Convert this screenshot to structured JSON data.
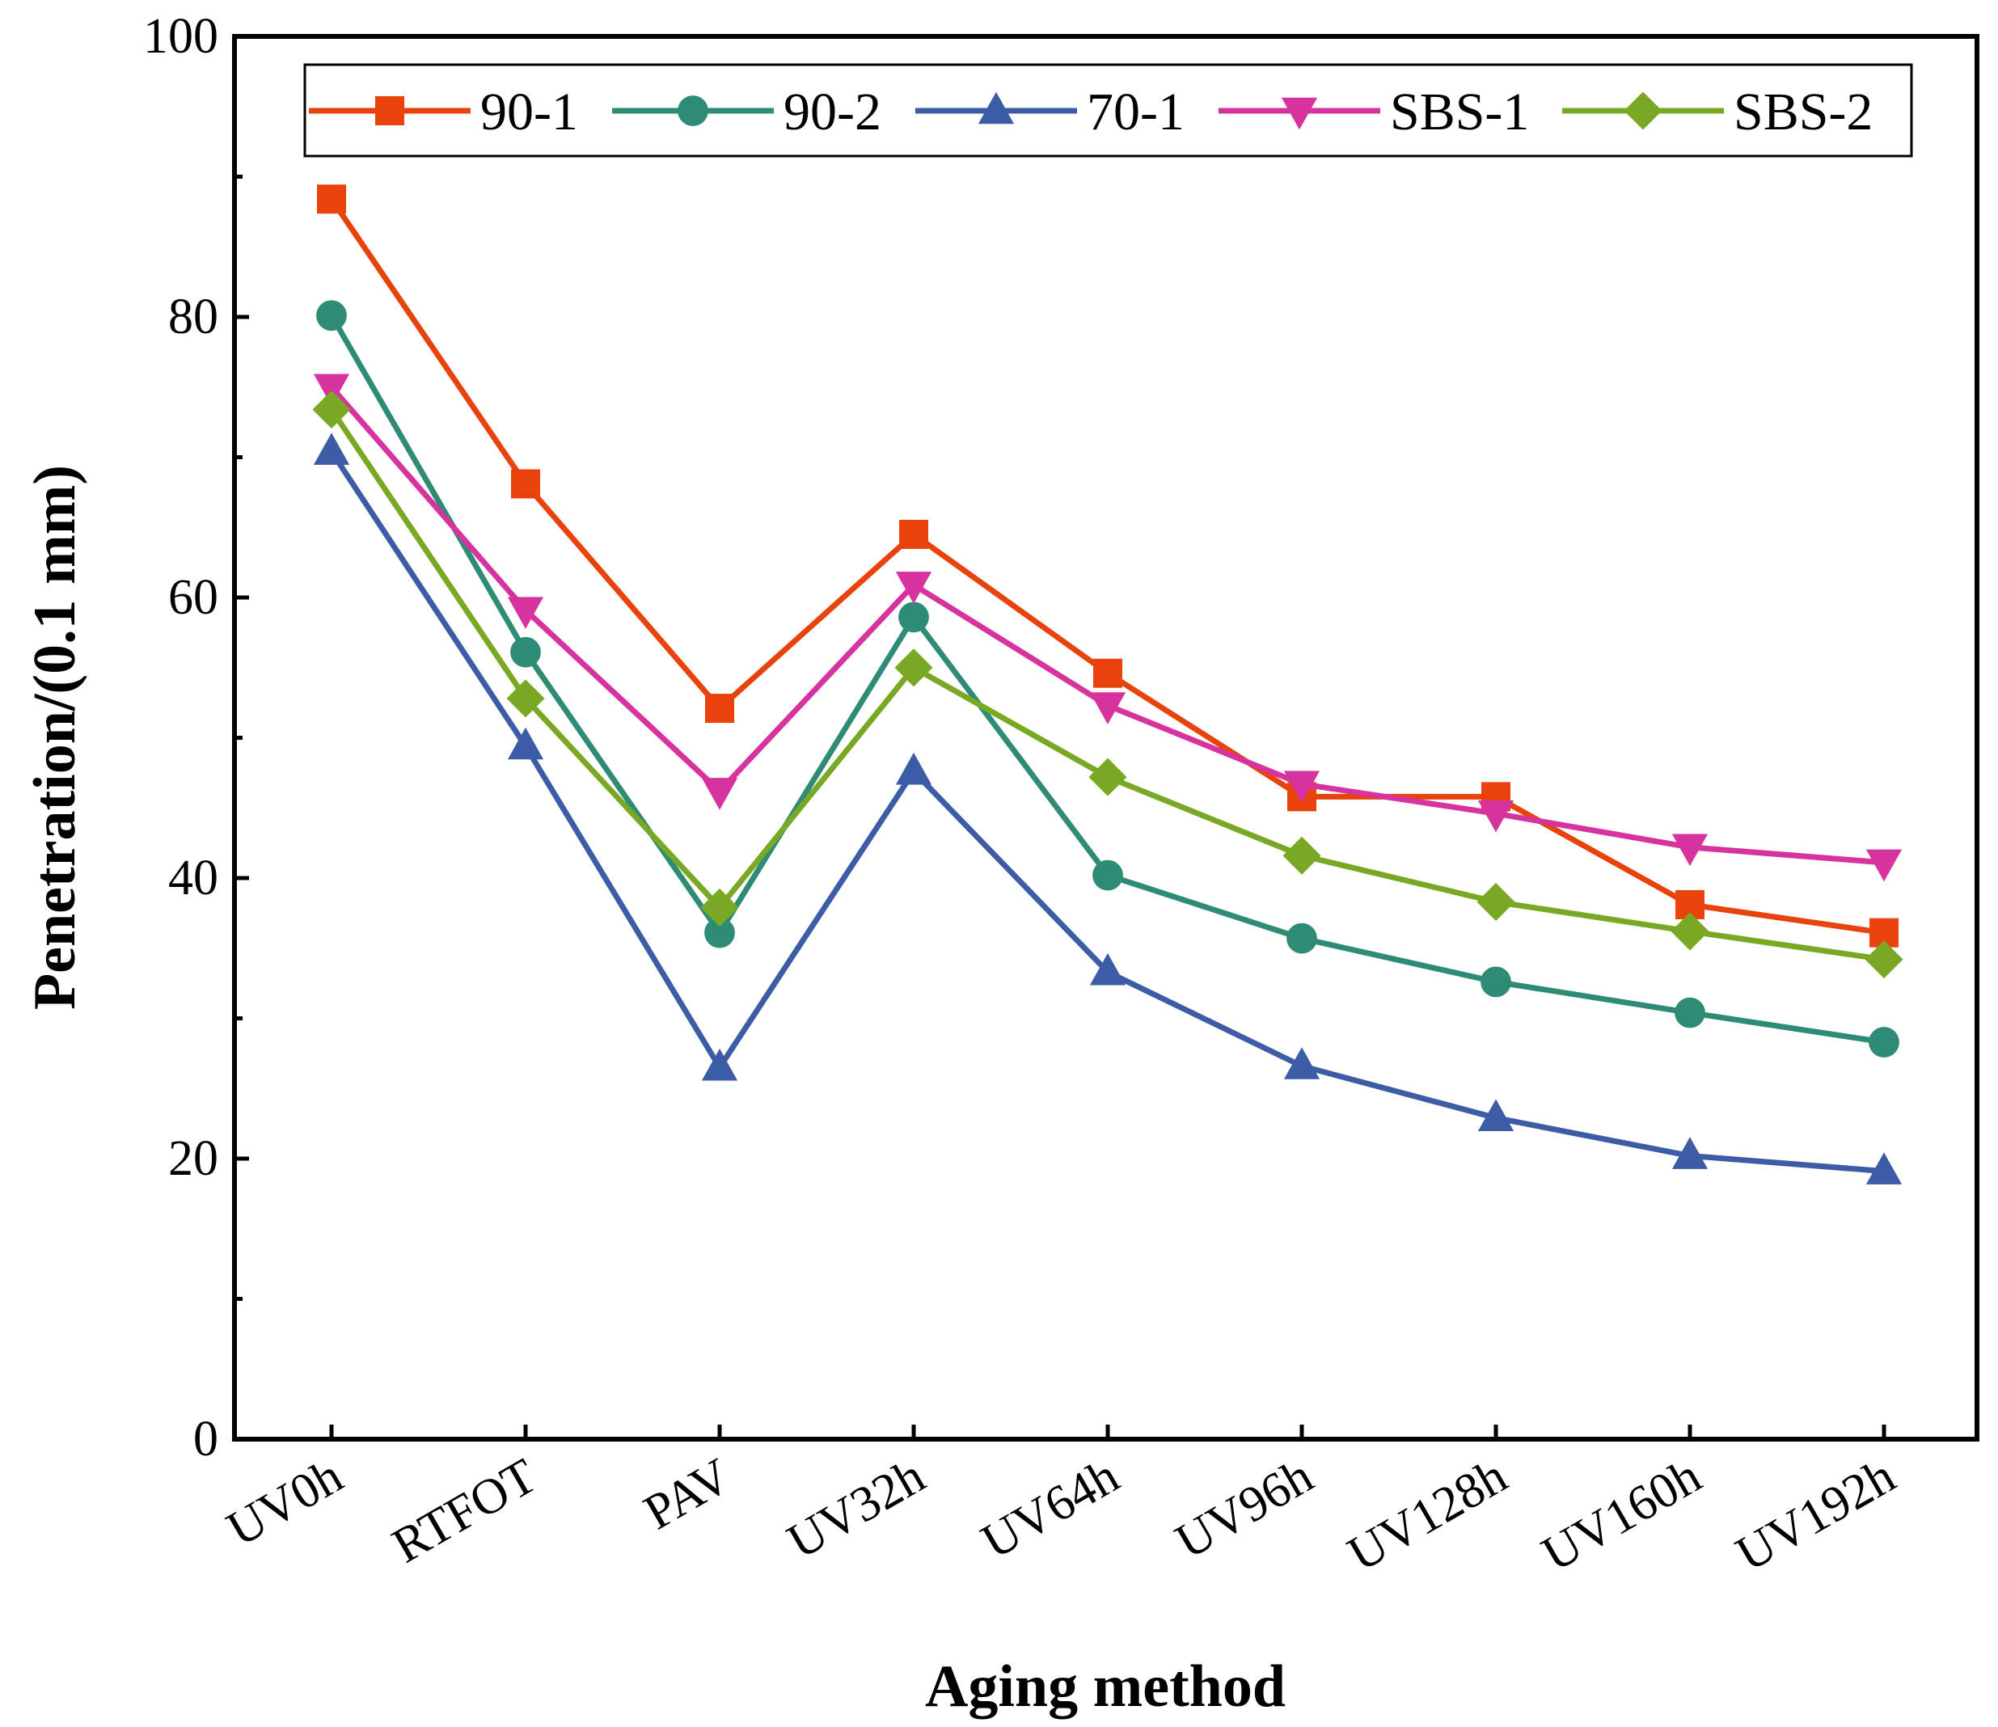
{
  "chart_data": {
    "type": "line",
    "title": "",
    "xlabel": "Aging method",
    "ylabel": "Penetration/(0.1 mm)",
    "categories": [
      "UV0h",
      "RTFOT",
      "PAV",
      "UV32h",
      "UV64h",
      "UV96h",
      "UV128h",
      "UV160h",
      "UV192h"
    ],
    "ylim": [
      0,
      100
    ],
    "yticks": [
      0,
      20,
      40,
      60,
      80,
      100
    ],
    "ytick_labels": [
      "0",
      "20",
      "40",
      "60",
      "80",
      "100"
    ],
    "grid": false,
    "legend_position": "top",
    "series": [
      {
        "name": "90-1",
        "color": "#e8430c",
        "marker": "square",
        "values": [
          88.4,
          68.1,
          52.1,
          64.5,
          54.6,
          45.8,
          45.8,
          38.1,
          36.1
        ]
      },
      {
        "name": "90-2",
        "color": "#2e8b76",
        "marker": "circle",
        "values": [
          80.1,
          56.1,
          36.1,
          58.6,
          40.2,
          35.7,
          32.6,
          30.4,
          28.3
        ]
      },
      {
        "name": "70-1",
        "color": "#3d5ca6",
        "marker": "triangle-up",
        "values": [
          70.4,
          49.4,
          26.5,
          47.6,
          33.3,
          26.6,
          22.9,
          20.2,
          19.1
        ]
      },
      {
        "name": "SBS-1",
        "color": "#d6339e",
        "marker": "triangle-down",
        "values": [
          75.0,
          59.1,
          46.2,
          60.9,
          52.3,
          46.7,
          44.6,
          42.2,
          41.1
        ]
      },
      {
        "name": "SBS-2",
        "color": "#79a824",
        "marker": "diamond",
        "values": [
          73.4,
          52.8,
          37.9,
          55.0,
          47.2,
          41.6,
          38.3,
          36.2,
          34.2
        ]
      }
    ]
  }
}
